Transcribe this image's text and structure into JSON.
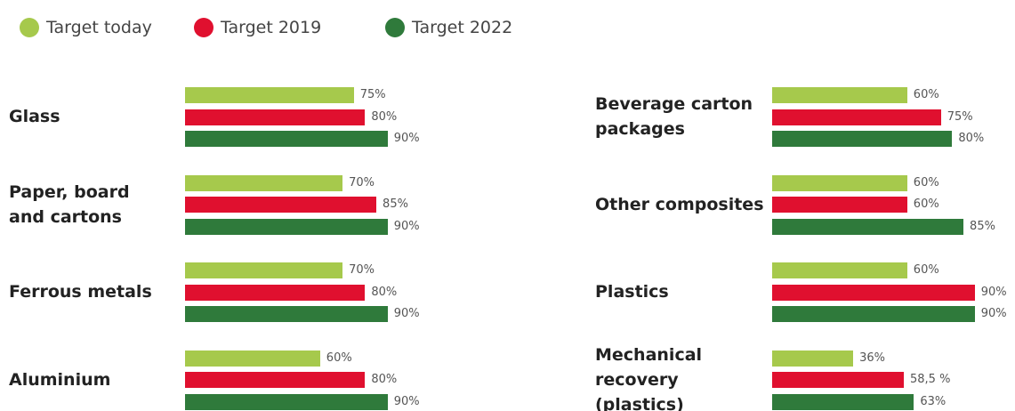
{
  "chart_data": {
    "type": "bar",
    "orientation": "horizontal",
    "xlim": [
      0,
      100
    ],
    "categories": [
      "Glass",
      "Paper, board\nand cartons",
      "Ferrous metals",
      "Aluminium",
      "Beverage carton\npackages",
      "Other composites",
      "Plastics",
      "Mechanical\nrecovery\n(plastics)"
    ],
    "series": [
      {
        "name": "Target today",
        "color": "#a6c94c",
        "values": [
          75,
          70,
          70,
          60,
          60,
          60,
          60,
          36
        ],
        "value_labels": [
          "75%",
          "70%",
          "70%",
          "60%",
          "60%",
          "60%",
          "60%",
          "36%"
        ]
      },
      {
        "name": "Target 2019",
        "color": "#e0102f",
        "values": [
          80,
          85,
          80,
          80,
          75,
          60,
          90,
          58.5
        ],
        "value_labels": [
          "80%",
          "85%",
          "80%",
          "80%",
          "75%",
          "60%",
          "90%",
          "58,5 %"
        ]
      },
      {
        "name": "Target 2022",
        "color": "#2f7a3b",
        "values": [
          90,
          90,
          90,
          90,
          80,
          85,
          90,
          63
        ],
        "value_labels": [
          "90%",
          "90%",
          "90%",
          "90%",
          "80%",
          "85%",
          "90%",
          "63%"
        ]
      }
    ]
  }
}
